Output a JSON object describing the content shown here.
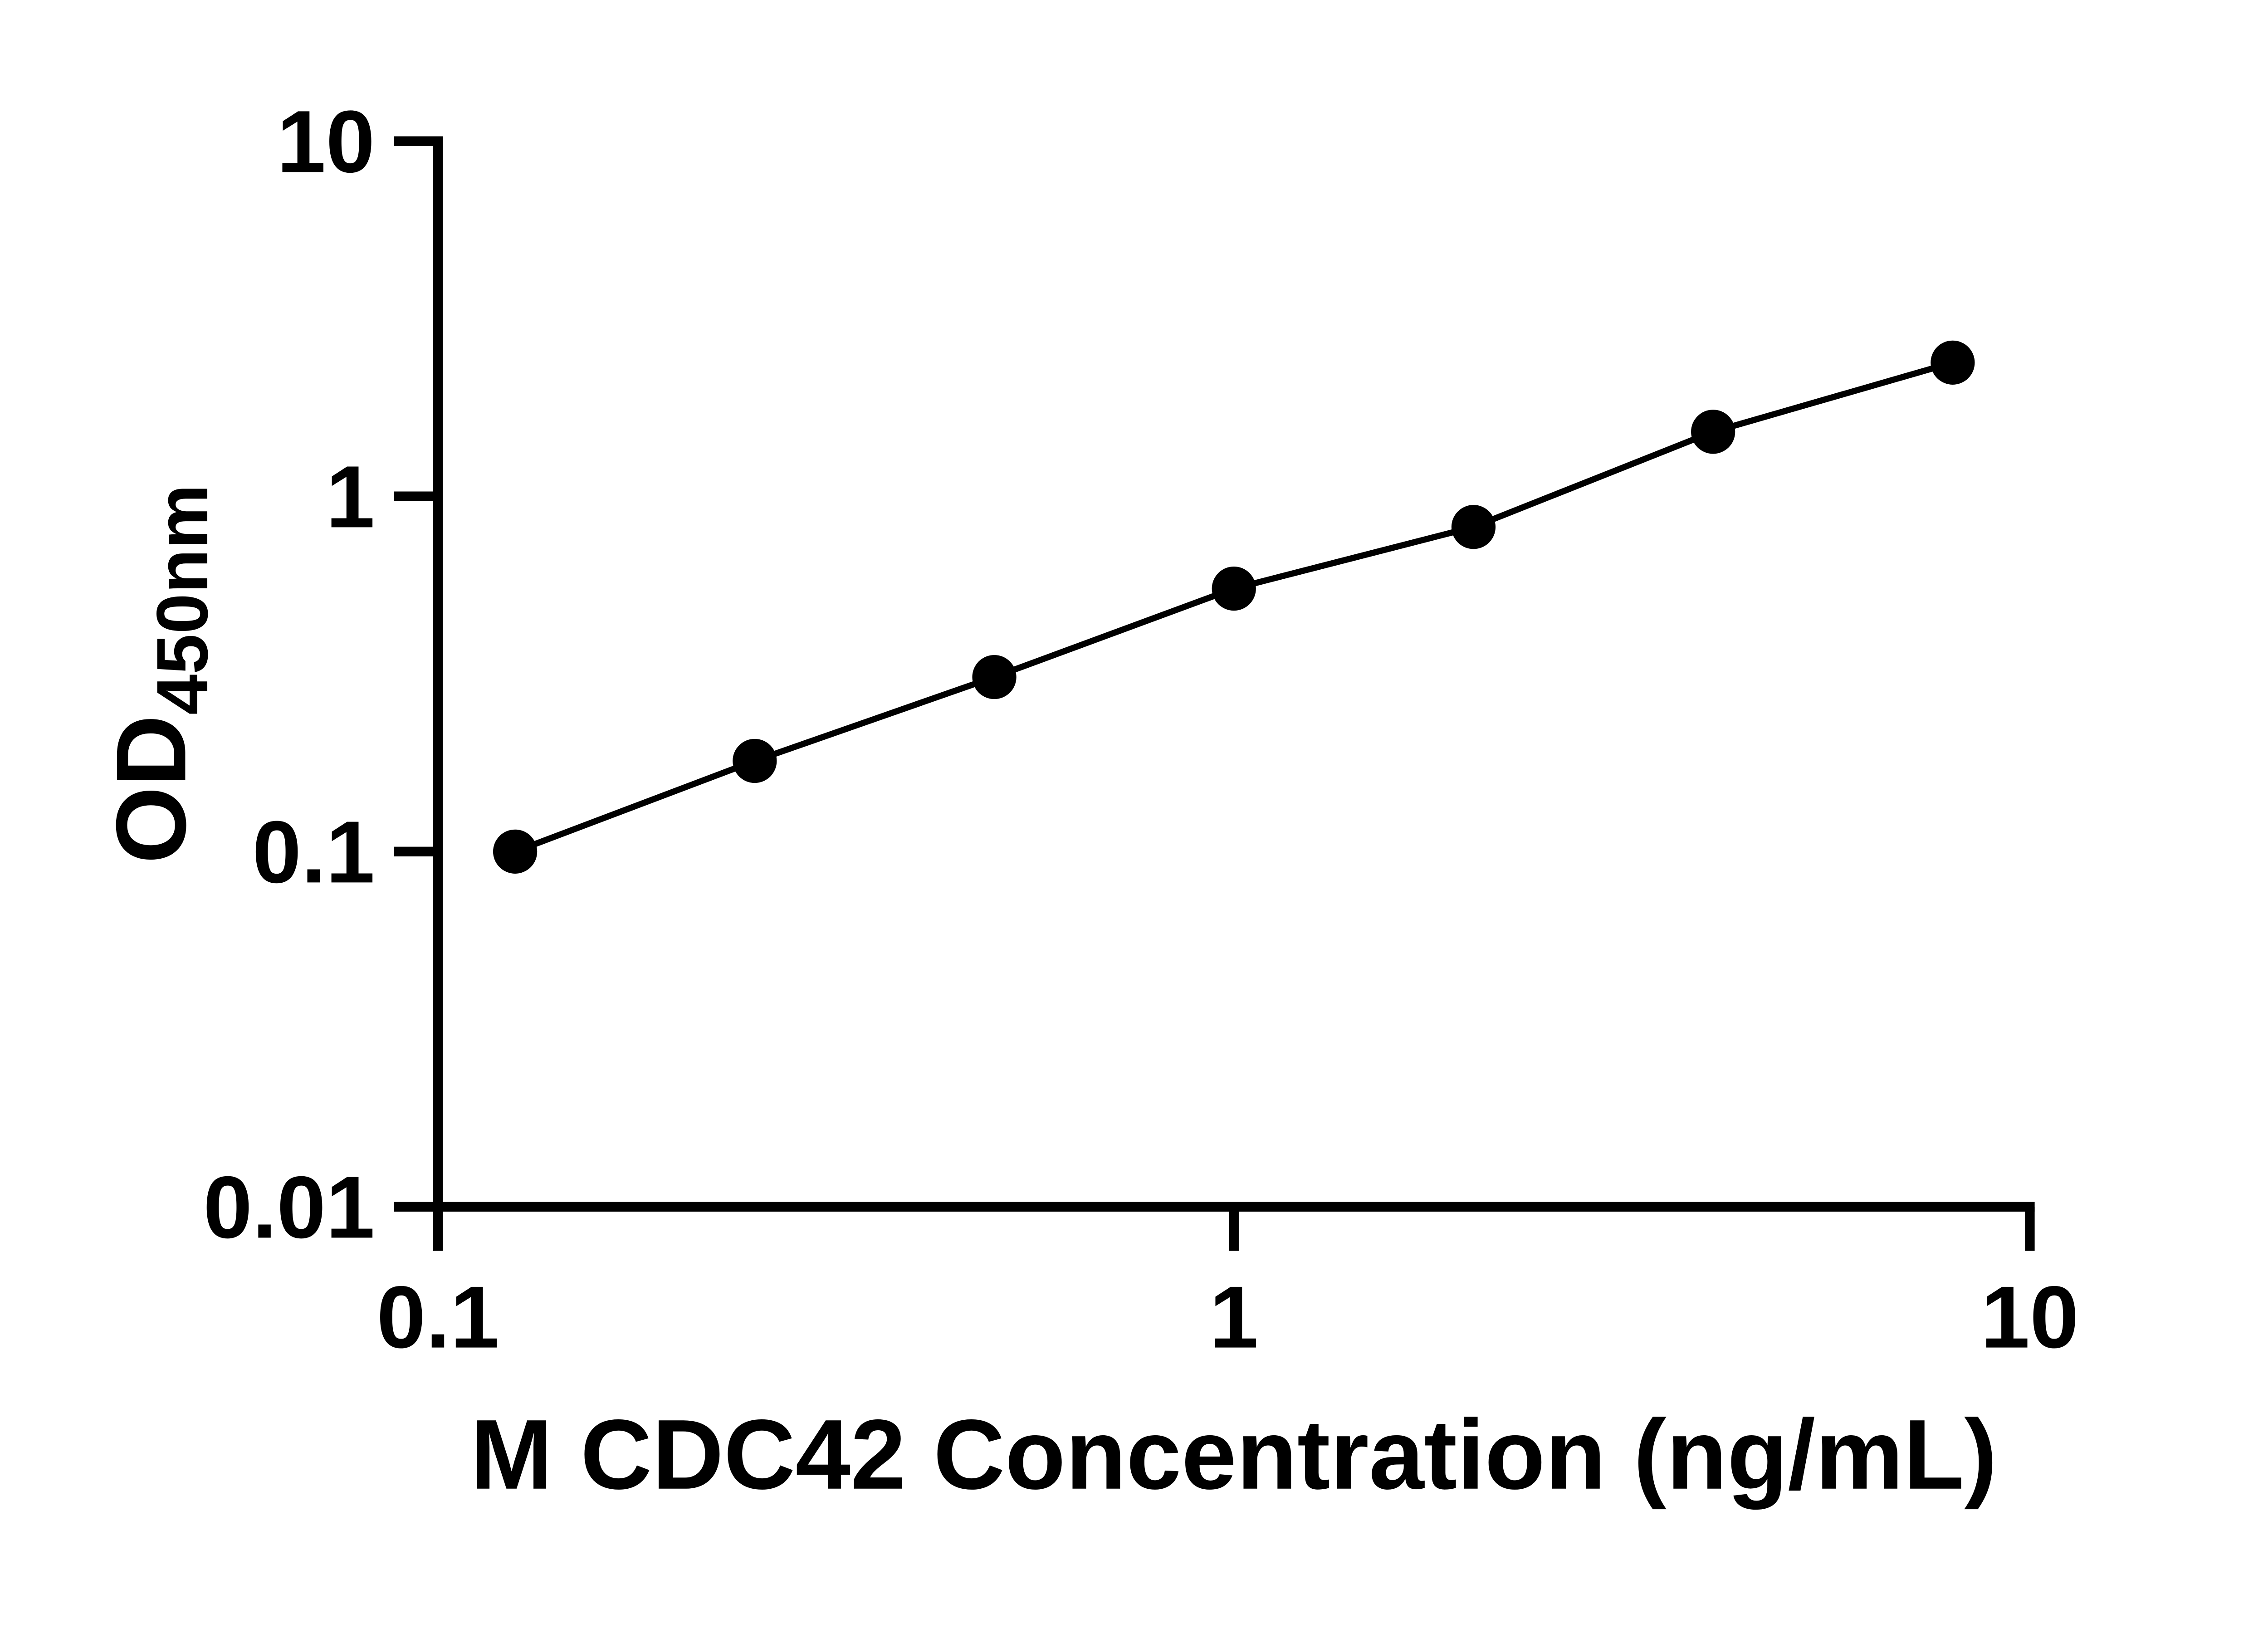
{
  "page": {
    "background_color": "#ffffff",
    "foreground_color": "#000000"
  },
  "chart_data": {
    "type": "line",
    "title": "",
    "xlabel": "M CDC42 Concentration (ng/mL)",
    "ylabel_main": "OD",
    "ylabel_sub": "450nm",
    "x_scale": "log",
    "y_scale": "log",
    "xlim": [
      0.1,
      10
    ],
    "ylim": [
      0.01,
      10
    ],
    "x": [
      0.125,
      0.25,
      0.5,
      1,
      2,
      4,
      8
    ],
    "y": [
      0.1,
      0.18,
      0.31,
      0.55,
      0.82,
      1.52,
      2.38
    ],
    "x_ticks": [
      {
        "value": 0.1,
        "label": "0.1"
      },
      {
        "value": 1,
        "label": "1"
      },
      {
        "value": 10,
        "label": "10"
      }
    ],
    "y_ticks": [
      {
        "value": 10,
        "label": "10"
      },
      {
        "value": 1,
        "label": "1"
      },
      {
        "value": 0.1,
        "label": "0.1"
      },
      {
        "value": 0.01,
        "label": "0.01"
      }
    ],
    "grid": false,
    "legend": "none",
    "line_color": "#000000",
    "marker_color": "#000000",
    "marker_shape": "circle"
  }
}
